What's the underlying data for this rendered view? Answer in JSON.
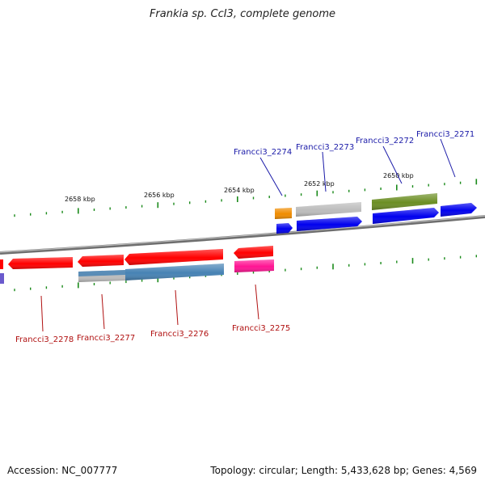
{
  "title": "Frankia sp. CcI3, complete genome",
  "footer": {
    "accession": "Accession: NC_007777",
    "topology": "Topology: circular; Length: 5,433,628 bp; Genes: 4,569"
  },
  "ticks": [
    {
      "label": "2658 kbp"
    },
    {
      "label": "2656 kbp"
    },
    {
      "label": "2654 kbp"
    },
    {
      "label": "2652 kbp"
    },
    {
      "label": "2650 kbp"
    }
  ],
  "genes": [
    {
      "label": "Francci3_2271",
      "strand": "+",
      "color": "#0000ee"
    },
    {
      "label": "Francci3_2272",
      "strand": "+",
      "color": "#0000ee"
    },
    {
      "label": "Francci3_2273",
      "strand": "+",
      "color": "#0000ee"
    },
    {
      "label": "Francci3_2274",
      "strand": "+",
      "color": "#0000ee"
    },
    {
      "label": "Francci3_2275",
      "strand": "-",
      "color": "#ff0000"
    },
    {
      "label": "Francci3_2276",
      "strand": "-",
      "color": "#ff0000"
    },
    {
      "label": "Francci3_2277",
      "strand": "-",
      "color": "#ff0000"
    },
    {
      "label": "Francci3_2278",
      "strand": "-",
      "color": "#ff0000"
    }
  ],
  "colors": {
    "forward_label": "#1a1aa8",
    "reverse_label": "#b01010",
    "backbone": "#8a8a8a",
    "tick": "#1a8a1a",
    "cds_forward": "#0000ee",
    "cds_reverse": "#ff0000",
    "orange_feature": "#f08c00",
    "grey_feature": "#bcbcbc",
    "olive_feature": "#6b8e23",
    "steel_feature": "#4682b4",
    "pink_feature": "#ff1493",
    "purple_feature": "#6a5acd"
  }
}
